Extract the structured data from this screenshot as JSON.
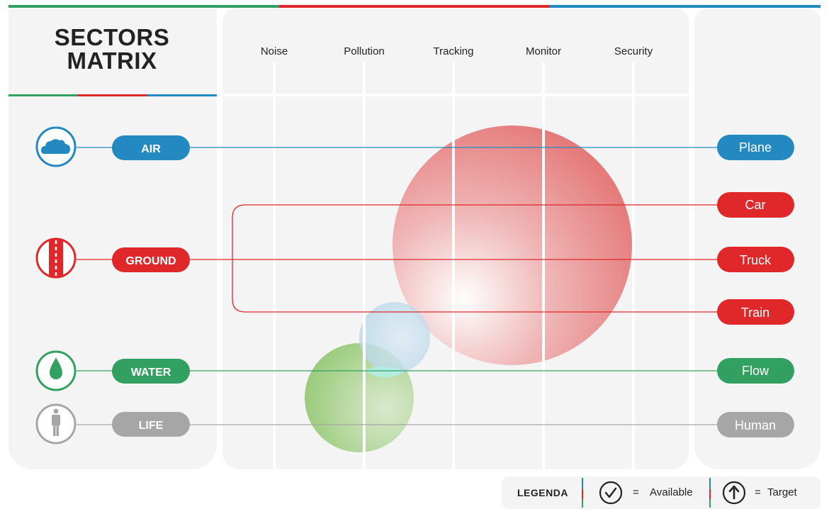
{
  "title_line1": "SECTORS",
  "title_line2": "MATRIX",
  "columns": [
    "Noise",
    "Pollution",
    "Tracking",
    "Monitor",
    "Security"
  ],
  "sectors": [
    {
      "label": "AIR",
      "icon": "cloud-icon",
      "color": "#2389c0"
    },
    {
      "label": "GROUND",
      "icon": "road-icon",
      "color": "#e0282a"
    },
    {
      "label": "WATER",
      "icon": "water-drop-icon",
      "color": "#32a060"
    },
    {
      "label": "LIFE",
      "icon": "person-icon",
      "color": "#a6a6a6"
    }
  ],
  "targets": [
    {
      "label": "Plane",
      "color": "#2389c0"
    },
    {
      "label": "Car",
      "color": "#e0282a"
    },
    {
      "label": "Truck",
      "color": "#e0282a"
    },
    {
      "label": "Train",
      "color": "#e0282a"
    },
    {
      "label": "Flow",
      "color": "#32a060"
    },
    {
      "label": "Human",
      "color": "#a6a6a6"
    }
  ],
  "legend": {
    "title": "LEGENDA",
    "available_eq": "=",
    "available_label": "Available",
    "target_eq": "=",
    "target_label": "Target",
    "available_icon": "check-circle-icon",
    "target_icon": "arrow-up-circle-icon"
  },
  "accent_colors": {
    "green": "#32a060",
    "red": "#e0282a",
    "blue": "#2389c0"
  }
}
